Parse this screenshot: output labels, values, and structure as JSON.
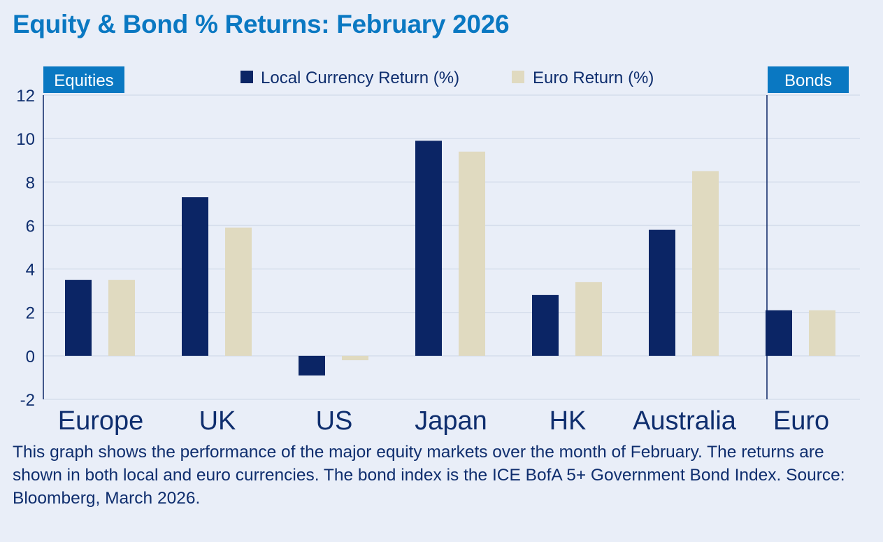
{
  "chart_data": {
    "type": "bar",
    "title": "Equity & Bond % Returns: February 2026",
    "categories": [
      "Europe",
      "UK",
      "US",
      "Japan",
      "HK",
      "Australia",
      "Euro"
    ],
    "series": [
      {
        "name": "Local Currency Return (%)",
        "values": [
          3.5,
          7.3,
          -0.9,
          9.9,
          2.8,
          5.8,
          2.1
        ]
      },
      {
        "name": "Euro Return (%)",
        "values": [
          3.5,
          5.9,
          -0.2,
          9.4,
          3.4,
          8.5,
          2.1
        ]
      }
    ],
    "ylim": [
      -2,
      12
    ],
    "yticks": [
      "12",
      "10",
      "8",
      "6",
      "4",
      "2",
      "0",
      "-2"
    ],
    "ytick_values": [
      12,
      10,
      8,
      6,
      4,
      2,
      0,
      -2
    ],
    "grid": true,
    "legend_position": "top-center",
    "section_labels": {
      "equities": "Equities",
      "bonds": "Bonds"
    },
    "colors": {
      "local": "#0b2565",
      "euro": "#e0dac0",
      "tag_bg": "#0a78c2",
      "text": "#0f2e6e",
      "title": "#0a78c2"
    }
  },
  "caption": "This graph shows the performance of the major equity markets over the month of February. The returns are shown in both local and euro currencies. The bond index is the ICE BofA 5+ Government Bond Index. Source: Bloomberg, March 2026."
}
